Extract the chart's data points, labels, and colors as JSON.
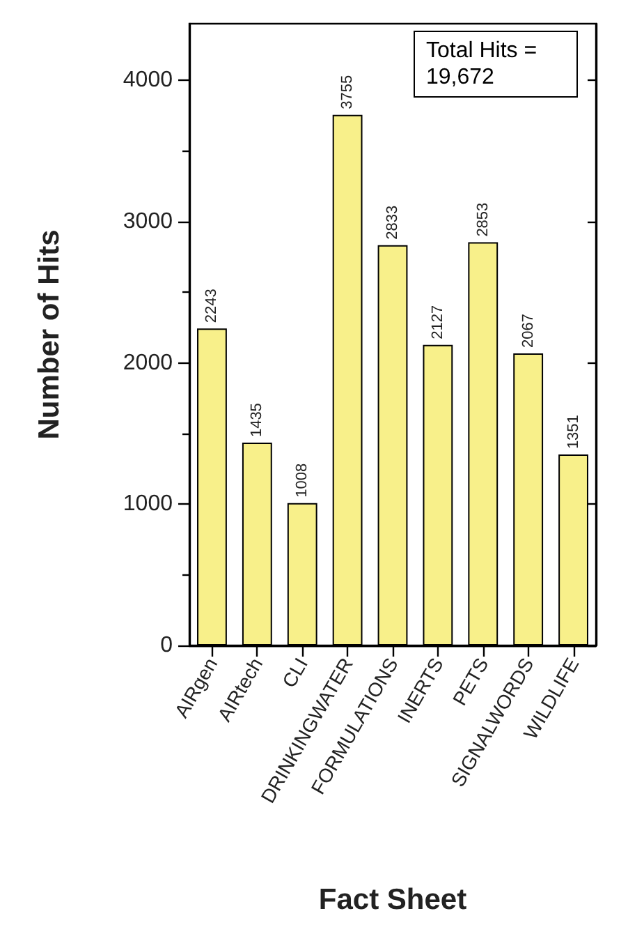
{
  "chart_data": {
    "type": "bar",
    "xlabel": "Fact Sheet",
    "ylabel": "Number of Hits",
    "categories": [
      "AIRgen",
      "AIRtech",
      "CLI",
      "DRINKINGWATER",
      "FORMULATIONS",
      "INERTS",
      "PETS",
      "SIGNALWORDS",
      "WILDLIFE"
    ],
    "values": [
      2243,
      1435,
      1008,
      3755,
      2833,
      2127,
      2853,
      2067,
      1351
    ],
    "color": "#f8f08a",
    "ylim": [
      0,
      4400
    ],
    "yticks": [
      0,
      1000,
      2000,
      3000,
      4000
    ],
    "grid": false,
    "data_labels": true,
    "annotations": [
      "Total Hits = 19,672"
    ]
  }
}
